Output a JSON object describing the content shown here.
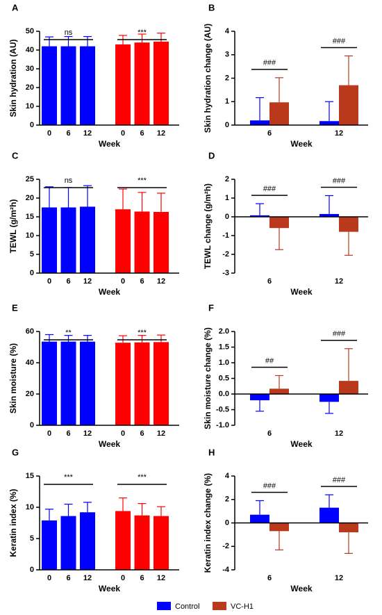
{
  "chart_data": [
    {
      "type": "bar",
      "panel": "A",
      "ylabel": "Skin hydration (AU)",
      "xlabel": "Week",
      "categories": [
        "0",
        "6",
        "12"
      ],
      "ylim": [
        0,
        50
      ],
      "yticks": [
        0,
        10,
        20,
        30,
        40,
        50
      ],
      "series": [
        {
          "name": "Control",
          "color": "#0000ff",
          "values": [
            42,
            42,
            42
          ],
          "errors": [
            5,
            5.2,
            5.2
          ]
        },
        {
          "name": "VC-H1",
          "color": "#ff0000",
          "values": [
            43,
            44,
            44.5
          ],
          "errors": [
            4.8,
            4.5,
            4.5
          ]
        }
      ],
      "series_annotations": [
        "ns",
        "***"
      ]
    },
    {
      "type": "bar",
      "panel": "B",
      "ylabel": "Skin hydration change (AU)",
      "xlabel": "Week",
      "categories": [
        "6",
        "12"
      ],
      "ylim": [
        0,
        4
      ],
      "yticks": [
        0,
        1,
        2,
        3,
        4
      ],
      "series": [
        {
          "name": "Control",
          "color": "#0000ff",
          "values": [
            0.2,
            0.17
          ],
          "errors": [
            0.97,
            0.83
          ]
        },
        {
          "name": "VC-H1",
          "color": "#b8391c",
          "values": [
            0.97,
            1.7
          ],
          "errors": [
            1.05,
            1.25
          ]
        }
      ],
      "category_annotations": [
        "###",
        "###"
      ]
    },
    {
      "type": "bar",
      "panel": "C",
      "ylabel": "TEWL (g/m²h)",
      "xlabel": "Week",
      "categories": [
        "0",
        "6",
        "12"
      ],
      "ylim": [
        0,
        25
      ],
      "yticks": [
        0,
        5,
        10,
        15,
        20,
        25
      ],
      "series": [
        {
          "name": "Control",
          "color": "#0000ff",
          "values": [
            17.5,
            17.5,
            17.7
          ],
          "errors": [
            5.5,
            5.3,
            5.6
          ]
        },
        {
          "name": "VC-H1",
          "color": "#ff0000",
          "values": [
            17,
            16.4,
            16.3
          ],
          "errors": [
            5.4,
            5.1,
            5
          ]
        }
      ],
      "series_annotations": [
        "ns",
        "***"
      ]
    },
    {
      "type": "bar",
      "panel": "D",
      "ylabel": "TEWL change (g/m²h)",
      "xlabel": "Week",
      "categories": [
        "6",
        "12"
      ],
      "ylim": [
        -3,
        2
      ],
      "yticks": [
        -3,
        -2,
        -1,
        0,
        1,
        2
      ],
      "series": [
        {
          "name": "Control",
          "color": "#0000ff",
          "values": [
            0.08,
            0.15
          ],
          "errors": [
            0.62,
            0.98
          ]
        },
        {
          "name": "VC-H1",
          "color": "#b8391c",
          "values": [
            -0.6,
            -0.8
          ],
          "errors": [
            1.15,
            1.25
          ]
        }
      ],
      "category_annotations": [
        "###",
        "###"
      ]
    },
    {
      "type": "bar",
      "panel": "E",
      "ylabel": "Skin moisture (%)",
      "xlabel": "Week",
      "categories": [
        "0",
        "6",
        "12"
      ],
      "ylim": [
        0,
        60
      ],
      "yticks": [
        0,
        20,
        40,
        60
      ],
      "series": [
        {
          "name": "Control",
          "color": "#0000ff",
          "values": [
            53.5,
            53.5,
            53.5
          ],
          "errors": [
            4.5,
            4,
            4
          ]
        },
        {
          "name": "VC-H1",
          "color": "#ff0000",
          "values": [
            52.8,
            53,
            53.2
          ],
          "errors": [
            4.5,
            4.5,
            4.5
          ]
        }
      ],
      "series_annotations": [
        "**",
        "***"
      ]
    },
    {
      "type": "bar",
      "panel": "F",
      "ylabel": "Skin moisture change (%)",
      "xlabel": "Week",
      "categories": [
        "6",
        "12"
      ],
      "ylim": [
        -1,
        2
      ],
      "yticks": [
        {
          "value": -1,
          "label": "-1.0"
        },
        -0.5,
        {
          "value": 0,
          "label": "0.0"
        },
        0.5,
        {
          "value": 1,
          "label": "1.0"
        },
        1.5,
        {
          "value": 2,
          "label": "2.0"
        }
      ],
      "series": [
        {
          "name": "Control",
          "color": "#0000ff",
          "values": [
            -0.2,
            -0.25
          ],
          "errors": [
            0.35,
            0.37
          ]
        },
        {
          "name": "VC-H1",
          "color": "#b8391c",
          "values": [
            0.17,
            0.42
          ],
          "errors": [
            0.42,
            1.03
          ]
        }
      ],
      "category_annotations": [
        "##",
        "###"
      ]
    },
    {
      "type": "bar",
      "panel": "G",
      "ylabel": "Keratin index (%)",
      "xlabel": "Week",
      "categories": [
        "0",
        "6",
        "12"
      ],
      "ylim": [
        0,
        15
      ],
      "yticks": [
        0,
        5,
        10,
        15
      ],
      "series": [
        {
          "name": "Control",
          "color": "#0000ff",
          "values": [
            7.9,
            8.6,
            9.2
          ],
          "errors": [
            1.8,
            1.9,
            1.6
          ]
        },
        {
          "name": "VC-H1",
          "color": "#ff0000",
          "values": [
            9.4,
            8.7,
            8.6
          ],
          "errors": [
            2.1,
            1.9,
            1.5
          ]
        }
      ],
      "series_annotations": [
        "***",
        "***"
      ]
    },
    {
      "type": "bar",
      "panel": "H",
      "ylabel": "Keratin index change (%)",
      "xlabel": "Week",
      "categories": [
        "6",
        "12"
      ],
      "ylim": [
        -4,
        4
      ],
      "yticks": [
        -4,
        -2,
        0,
        2,
        4
      ],
      "series": [
        {
          "name": "Control",
          "color": "#0000ff",
          "values": [
            0.7,
            1.3
          ],
          "errors": [
            1.2,
            1.1
          ]
        },
        {
          "name": "VC-H1",
          "color": "#b8391c",
          "values": [
            -0.7,
            -0.8
          ],
          "errors": [
            1.6,
            1.8
          ]
        }
      ],
      "category_annotations": [
        "###",
        "###"
      ]
    }
  ]
}
